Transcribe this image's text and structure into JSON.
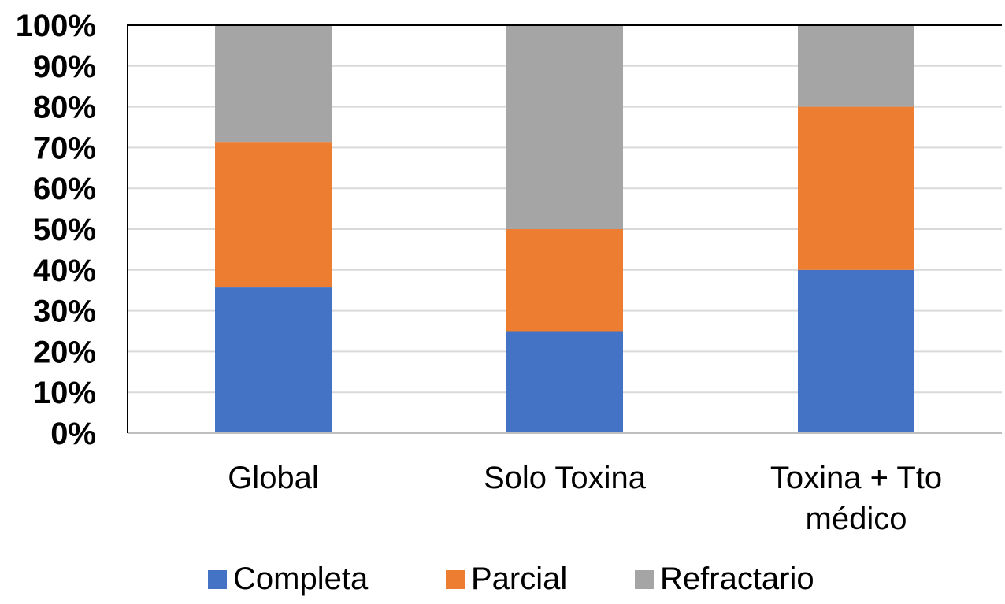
{
  "chart_data": {
    "type": "bar",
    "stacked": true,
    "percent": true,
    "categories": [
      [
        "Global"
      ],
      [
        "Solo Toxina"
      ],
      [
        "Toxina + Tto",
        "médico"
      ]
    ],
    "series": [
      {
        "name": "Completa",
        "color": "#4472C4",
        "values": [
          35.7,
          25,
          40
        ]
      },
      {
        "name": "Parcial",
        "color": "#ED7D31",
        "values": [
          35.7,
          25,
          40
        ]
      },
      {
        "name": "Refractario",
        "color": "#A5A5A5",
        "values": [
          28.6,
          50,
          20
        ]
      }
    ],
    "ylim": [
      0,
      100
    ],
    "yticks": [
      "0%",
      "10%",
      "20%",
      "30%",
      "40%",
      "50%",
      "60%",
      "70%",
      "80%",
      "90%",
      "100%"
    ],
    "grid": true,
    "legend_position": "bottom"
  }
}
